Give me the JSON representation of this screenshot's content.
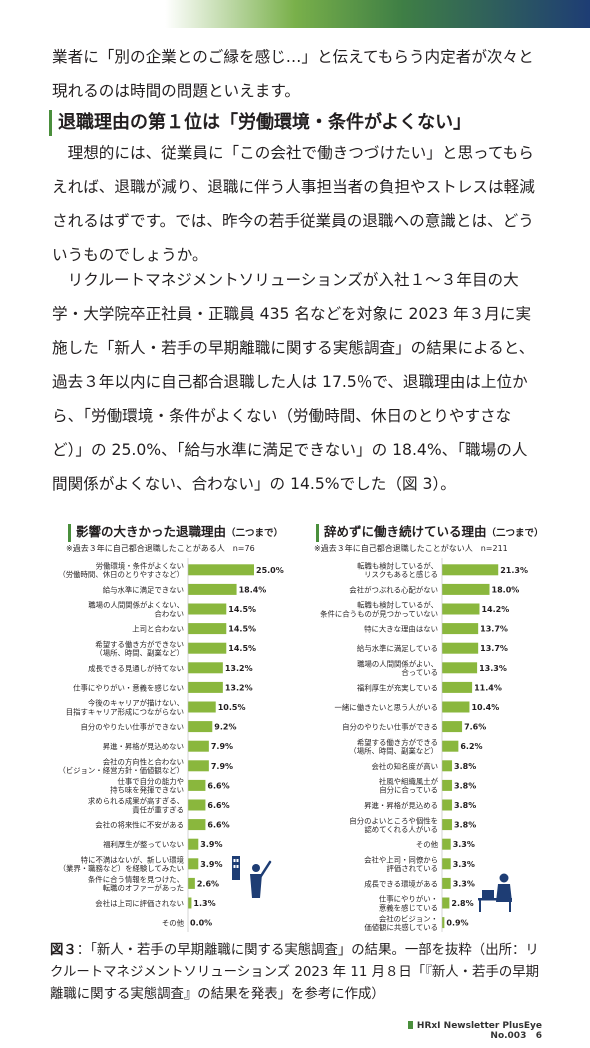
{
  "body": {
    "para1": "業者に「別の企業とのご縁を感じ…」と伝えてもらう内定者が次々と現れるのは時間の問題といえます。",
    "heading": "退職理由の第１位は「労働環境・条件がよくない」",
    "para2": "理想的には、従業員に「この会社で働きつづけたい」と思ってもらえれば、退職が減り、退職に伴う人事担当者の負担やストレスは軽減されるはずです。では、昨今の若手従業員の退職への意識とは、どういうものでしょうか。",
    "para3": "リクルートマネジメントソリューションズが入社１～３年目の大学・大学院卒正社員・正職員 435 名などを対象に 2023 年３月に実施した「新人・若手の早期離職に関する実態調査」の結果によると、過去３年以内に自己都合退職した人は 17.5％で、退職理由は上位から、「労働環境・条件がよくない（労働時間、休日のとりやすさなど）」の 25.0%、「給与水準に満足できない」の 18.4%、「職場の人間関係がよくない、合わない」の 14.5%でした（図 3）。"
  },
  "chart_data": [
    {
      "type": "bar",
      "title": "影響の大きかった退職理由",
      "subtitle": "（二つまで）",
      "note": "※過去３年に自己都合退職したことがある人　n=76",
      "categories": [
        "労働環境・条件がよくない\n（労働時間、休日のとりやすさなど）",
        "給与水準に満足できない",
        "職場の人間関係がよくない、\n合わない",
        "上司と合わない",
        "希望する働き方ができない\n（場所、時間、副業など）",
        "成長できる見通しが持てない",
        "仕事にやりがい・意義を感じない",
        "今後のキャリアが描けない、\n目指すキャリア形成につながらない",
        "自分のやりたい仕事ができない",
        "昇進・昇格が見込めない",
        "会社の方向性と合わない\n（ビジョン・経営方針・価値観など）",
        "仕事で自分の能力や\n持ち味を発揮できない",
        "求められる成果が高すぎる、\n責任が重すぎる",
        "会社の将来性に不安がある",
        "福利厚生が整っていない",
        "特に不満はないが、新しい環境\n（業界・職務など）を経験してみたい",
        "条件に合う情報を見つけた、\n転職のオファーがあった",
        "会社は上司に評価されない",
        "その他"
      ],
      "values": [
        25.0,
        18.4,
        14.5,
        14.5,
        14.5,
        13.2,
        13.2,
        10.5,
        9.2,
        7.9,
        7.9,
        6.6,
        6.6,
        6.6,
        3.9,
        3.9,
        2.6,
        1.3,
        0.0
      ],
      "labels": [
        "25.0%",
        "18.4%",
        "14.5%",
        "14.5%",
        "14.5%",
        "13.2%",
        "13.2%",
        "10.5%",
        "9.2%",
        "7.9%",
        "7.9%",
        "6.6%",
        "6.6%",
        "6.6%",
        "3.9%",
        "3.9%",
        "2.6%",
        "1.3%",
        "0.0%"
      ],
      "bar_color": "#8ab73d"
    },
    {
      "type": "bar",
      "title": "辞めずに働き続けている理由",
      "subtitle": "（二つまで）",
      "note": "※過去３年に自己都合退職したことがない人　n=211",
      "categories": [
        "転職も検討しているが、\nリスクもあると感じる",
        "会社がつぶれる心配がない",
        "転職も検討しているが、\n条件に合うものが見つかっていない",
        "特に大きな理由はない",
        "給与水準に満足している",
        "職場の人間関係がよい、\n合っている",
        "福利厚生が充実している",
        "一緒に働きたいと思う人がいる",
        "自分のやりたい仕事ができる",
        "希望する働き方ができる\n（場所、時間、副業など）",
        "会社の知名度が高い",
        "社風や組織風土が\n自分に合っている",
        "昇進・昇格が見込める",
        "自分のよいところや個性を\n認めてくれる人がいる",
        "その他",
        "会社や上司・同僚から\n評価されている",
        "成長できる環境がある",
        "仕事にやりがい・\n意義を感じている",
        "会社のビジョン・\n価値観に共感している"
      ],
      "values": [
        21.3,
        18.0,
        14.2,
        13.7,
        13.7,
        13.3,
        11.4,
        10.4,
        7.6,
        6.2,
        3.8,
        3.8,
        3.8,
        3.8,
        3.3,
        3.3,
        3.3,
        2.8,
        0.9
      ],
      "labels": [
        "21.3%",
        "18.0%",
        "14.2%",
        "13.7%",
        "13.7%",
        "13.3%",
        "11.4%",
        "10.4%",
        "7.6%",
        "6.2%",
        "3.8%",
        "3.8%",
        "3.8%",
        "3.8%",
        "3.3%",
        "3.3%",
        "3.3%",
        "2.8%",
        "0.9%"
      ],
      "bar_color": "#8ab73d"
    }
  ],
  "caption": {
    "label": "図３",
    "text": "：「新人・若手の早期離職に関する実態調査」の結果。一部を抜粋（出所：リクルートマネジメントソリューションズ 2023 年 11 月８日「『新人・若手の早期離職に関する実態調査』の結果を発表」を参考に作成）"
  },
  "footer": {
    "text": "HRxI Newsletter PlusEye  No.003",
    "page": "6"
  },
  "icons": [
    "presenter-icon",
    "desk-worker-icon"
  ],
  "colors": {
    "accent": "#4a8f3c",
    "bar": "#8ab73d"
  }
}
